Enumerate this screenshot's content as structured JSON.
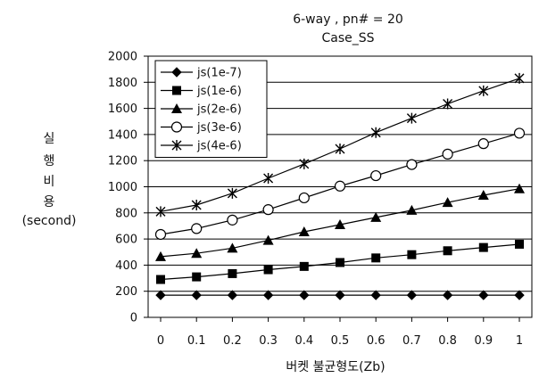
{
  "chart_data": {
    "type": "line",
    "title": "6-way , pn# = 20",
    "subtitle": "Case_SS",
    "xlabel": "버켓 불균형도(Zb)",
    "ylabel_lines": [
      "실",
      "행",
      "비",
      "용",
      "(second)"
    ],
    "x": [
      0,
      0.1,
      0.2,
      0.3,
      0.4,
      0.5,
      0.6,
      0.7,
      0.8,
      0.9,
      1
    ],
    "x_tick_labels": [
      "0",
      "0.1",
      "0.2",
      "0.3",
      "0.4",
      "0.5",
      "0.6",
      "0.7",
      "0.8",
      "0.9",
      "1"
    ],
    "ylim": [
      0,
      2000
    ],
    "y_ticks": [
      0,
      200,
      400,
      600,
      800,
      1000,
      1200,
      1400,
      1600,
      1800,
      2000
    ],
    "grid": "horizontal",
    "legend_position": "top-left",
    "series": [
      {
        "name": "js(1e-7)",
        "marker": "diamond",
        "values": [
          170,
          170,
          170,
          170,
          170,
          170,
          170,
          170,
          170,
          170,
          170
        ]
      },
      {
        "name": "js(1e-6)",
        "marker": "square",
        "values": [
          290,
          310,
          335,
          365,
          390,
          420,
          455,
          480,
          510,
          535,
          560
        ]
      },
      {
        "name": "js(2e-6)",
        "marker": "triangle",
        "values": [
          465,
          490,
          530,
          590,
          655,
          710,
          765,
          820,
          880,
          935,
          985
        ]
      },
      {
        "name": "js(3e-6)",
        "marker": "circle",
        "values": [
          635,
          680,
          745,
          825,
          915,
          1005,
          1085,
          1170,
          1250,
          1330,
          1410
        ]
      },
      {
        "name": "js(4e-6)",
        "marker": "asterisk",
        "values": [
          810,
          860,
          950,
          1065,
          1175,
          1290,
          1415,
          1525,
          1635,
          1735,
          1830
        ]
      }
    ]
  }
}
